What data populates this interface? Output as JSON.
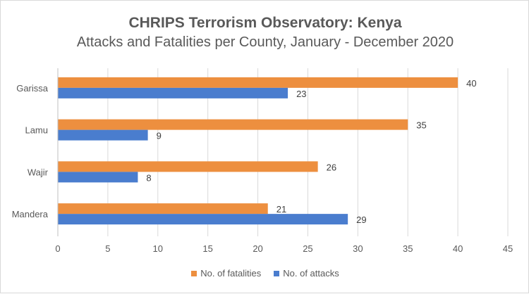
{
  "chart_data": {
    "type": "bar",
    "orientation": "horizontal",
    "title": "CHRIPS Terrorism Observatory: Kenya",
    "subtitle": "Attacks and Fatalities per County, January - December 2020",
    "categories": [
      "Garissa",
      "Lamu",
      "Wajir",
      "Mandera"
    ],
    "series": [
      {
        "name": "No. of fatalities",
        "color": "#ED8F3F",
        "values": [
          40,
          35,
          26,
          21
        ]
      },
      {
        "name": "No. of attacks",
        "color": "#4A7DCE",
        "values": [
          23,
          9,
          8,
          29
        ]
      }
    ],
    "xlim": [
      0,
      45
    ],
    "xticks": [
      "0",
      "5",
      "10",
      "15",
      "20",
      "25",
      "30",
      "35",
      "40",
      "45"
    ],
    "grid": true,
    "legend_position": "bottom"
  }
}
